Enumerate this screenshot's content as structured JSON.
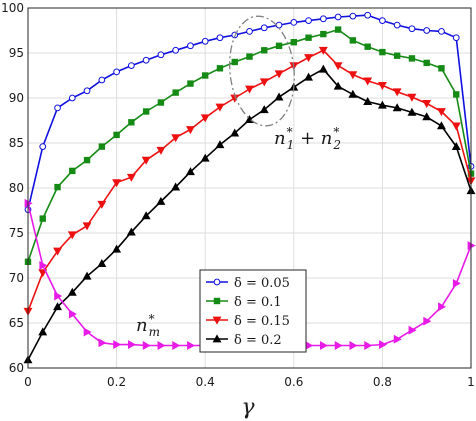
{
  "chart_data": {
    "type": "line",
    "xlabel": "γ",
    "ylabel": "",
    "xlim": [
      0,
      1
    ],
    "ylim": [
      60,
      100
    ],
    "x_ticks": [
      "0",
      "0.2",
      "0.4",
      "0.6",
      "0.8",
      "1"
    ],
    "y_ticks": [
      "60",
      "65",
      "70",
      "75",
      "80",
      "85",
      "90",
      "95",
      "100"
    ],
    "grid": true,
    "legend_position": "bottom-center",
    "x": [
      0,
      0.0333,
      0.0667,
      0.1,
      0.1333,
      0.1667,
      0.2,
      0.2333,
      0.2667,
      0.3,
      0.3333,
      0.3667,
      0.4,
      0.4333,
      0.4667,
      0.5,
      0.5333,
      0.5667,
      0.6,
      0.6333,
      0.6667,
      0.7,
      0.7333,
      0.7667,
      0.8,
      0.8333,
      0.8667,
      0.9,
      0.9333,
      0.9667,
      1
    ],
    "series": [
      {
        "name": "δ = 0.05",
        "color": "#1010e0",
        "marker": "circle",
        "values": [
          77.6,
          84.6,
          88.9,
          90.0,
          90.8,
          92.0,
          92.9,
          93.6,
          94.2,
          94.8,
          95.3,
          95.8,
          96.3,
          96.7,
          97.0,
          97.4,
          97.8,
          98.1,
          98.4,
          98.6,
          98.8,
          99.0,
          99.1,
          99.2,
          98.6,
          98.1,
          97.7,
          97.5,
          97.4,
          96.7,
          82.4
        ]
      },
      {
        "name": "δ = 0.1",
        "color": "#158a15",
        "marker": "square",
        "values": [
          71.8,
          76.6,
          80.1,
          81.9,
          83.1,
          84.6,
          85.9,
          87.3,
          88.5,
          89.5,
          90.6,
          91.6,
          92.5,
          93.3,
          94.0,
          94.6,
          95.3,
          95.8,
          96.2,
          96.7,
          97.1,
          97.6,
          96.4,
          95.7,
          95.1,
          94.7,
          94.4,
          93.9,
          93.3,
          90.4,
          81.6
        ]
      },
      {
        "name": "δ = 0.15",
        "color": "#ee1111",
        "marker": "triangle-down",
        "values": [
          66.3,
          70.6,
          73.0,
          74.8,
          75.8,
          78.2,
          80.6,
          81.2,
          83.1,
          84.2,
          85.6,
          86.5,
          87.8,
          89.0,
          90.0,
          91.0,
          91.8,
          92.7,
          93.6,
          94.5,
          95.3,
          93.6,
          92.6,
          91.9,
          91.4,
          90.7,
          90.1,
          89.4,
          88.5,
          86.9,
          80.8
        ]
      },
      {
        "name": "δ = 0.2",
        "color": "#000000",
        "marker": "triangle-up",
        "values": [
          60.9,
          64.0,
          66.8,
          68.4,
          70.2,
          71.6,
          73.2,
          75.1,
          76.9,
          78.5,
          80.1,
          81.8,
          83.3,
          84.8,
          86.1,
          87.6,
          88.7,
          90.1,
          91.2,
          92.3,
          93.2,
          91.3,
          90.4,
          89.6,
          89.2,
          88.9,
          88.4,
          87.9,
          86.9,
          84.6,
          79.7
        ]
      },
      {
        "name": "",
        "color": "#e81ae8",
        "marker": "triangle-right",
        "values": [
          78.3,
          71.4,
          68.0,
          66.0,
          64.0,
          62.8,
          62.6,
          62.6,
          62.5,
          62.5,
          62.5,
          62.5,
          62.5,
          62.5,
          62.5,
          62.5,
          62.5,
          62.5,
          62.5,
          62.5,
          62.5,
          62.5,
          62.5,
          62.5,
          62.6,
          63.2,
          64.2,
          65.2,
          66.8,
          69.4,
          73.6
        ]
      }
    ],
    "annotations": [
      {
        "base": "n",
        "sub": "1",
        "sup": "*",
        "join": " + ",
        "base2": "n",
        "sub2": "2",
        "sup2": "*"
      },
      {
        "base": "n",
        "sub": "m",
        "sup": "*"
      }
    ]
  }
}
